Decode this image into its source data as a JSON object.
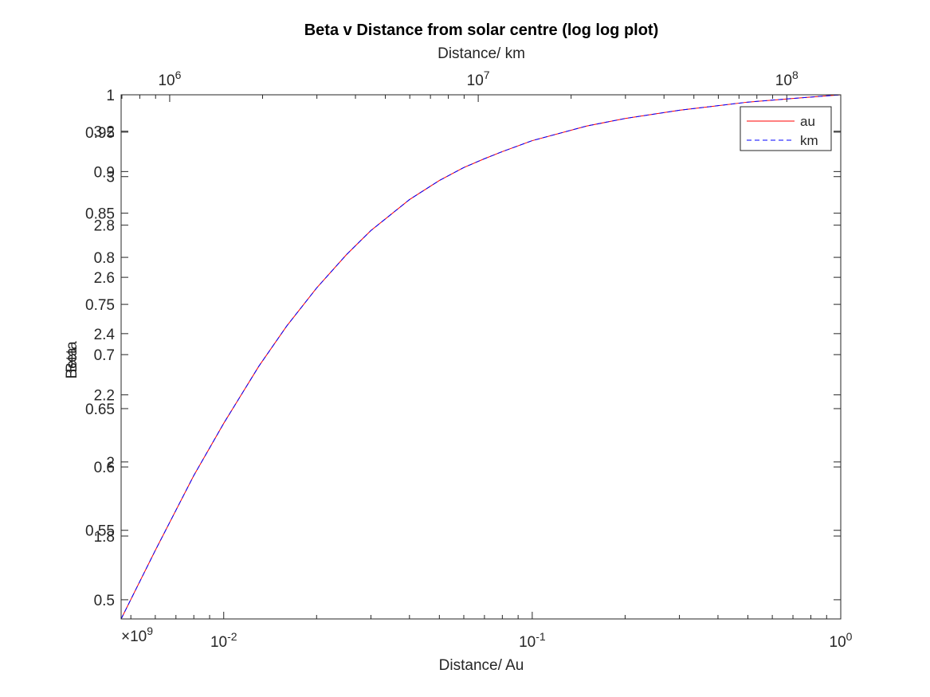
{
  "chart_data": {
    "type": "line",
    "title": "Beta v Distance from solar centre (log log plot)",
    "xlabel": "Distance/ Au",
    "x2label": "Distance/ km",
    "ylabel": "Beta",
    "y2label": "Beta",
    "x_scale": "log",
    "xlim": [
      0.00465,
      1.0
    ],
    "x_ticks": [
      {
        "value": 0.01,
        "base": "10",
        "exp": "-2"
      },
      {
        "value": 0.1,
        "base": "10",
        "exp": "-1"
      },
      {
        "value": 1.0,
        "base": "10",
        "exp": "0"
      }
    ],
    "x2_scale": "log",
    "x2lim": [
      696000,
      149600000
    ],
    "x2_ticks": [
      {
        "value": 1000000,
        "base": "10",
        "exp": "6"
      },
      {
        "value": 10000000,
        "base": "10",
        "exp": "7"
      },
      {
        "value": 100000000,
        "base": "10",
        "exp": "8"
      }
    ],
    "x_exponent_label": {
      "prefix": "×10",
      "exp": "9"
    },
    "y_scale": "log",
    "ylim": [
      0.487,
      1.0
    ],
    "y_ticks": [
      "0.5",
      "0.55",
      "0.6",
      "0.65",
      "0.7",
      "0.75",
      "0.8",
      "0.85",
      "0.9",
      "0.95",
      "1"
    ],
    "y_tick_values": [
      0.5,
      0.55,
      0.6,
      0.65,
      0.7,
      0.75,
      0.8,
      0.85,
      0.9,
      0.95,
      1.0
    ],
    "y2_scale": "log",
    "y2lim": [
      1.6,
      3.37
    ],
    "y2_ticks": [
      "1.8",
      "2",
      "2.2",
      "2.4",
      "2.6",
      "2.8",
      "3",
      "3.2"
    ],
    "y2_tick_values": [
      1.8,
      2.0,
      2.2,
      2.4,
      2.6,
      2.8,
      3.0,
      3.2
    ],
    "grid": false,
    "legend_position": "top-right",
    "series": [
      {
        "name": "au",
        "color": "#ff0000",
        "style": "solid",
        "x": [
          0.00465,
          0.006,
          0.008,
          0.01,
          0.013,
          0.016,
          0.02,
          0.025,
          0.03,
          0.04,
          0.05,
          0.06,
          0.07,
          0.08,
          0.1,
          0.15,
          0.2,
          0.3,
          0.5,
          0.7,
          1.0
        ],
        "y": [
          0.487,
          0.535,
          0.593,
          0.637,
          0.689,
          0.728,
          0.767,
          0.803,
          0.83,
          0.866,
          0.889,
          0.905,
          0.916,
          0.925,
          0.939,
          0.958,
          0.968,
          0.979,
          0.99,
          0.995,
          1.0
        ]
      },
      {
        "name": "km",
        "color": "#0000ff",
        "style": "dashed",
        "x": [
          0.00465,
          0.006,
          0.008,
          0.01,
          0.013,
          0.016,
          0.02,
          0.025,
          0.03,
          0.04,
          0.05,
          0.06,
          0.07,
          0.08,
          0.1,
          0.15,
          0.2,
          0.3,
          0.5,
          0.7,
          1.0
        ],
        "y": [
          0.487,
          0.535,
          0.593,
          0.637,
          0.689,
          0.728,
          0.767,
          0.803,
          0.83,
          0.866,
          0.889,
          0.905,
          0.916,
          0.925,
          0.939,
          0.958,
          0.968,
          0.979,
          0.99,
          0.995,
          1.0
        ]
      }
    ]
  }
}
